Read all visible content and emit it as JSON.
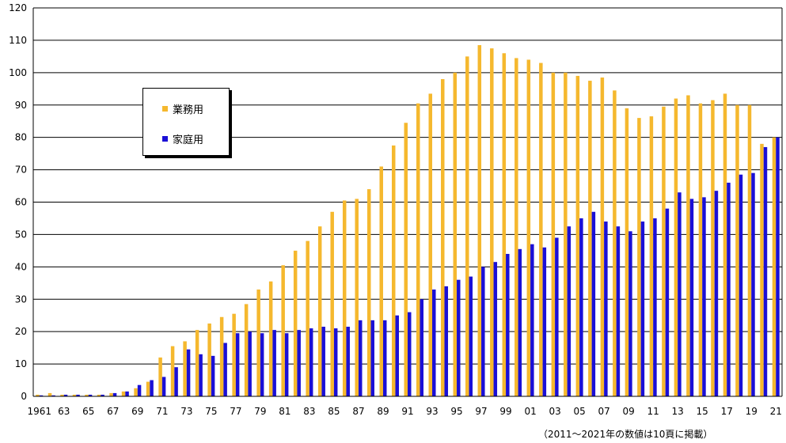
{
  "chart_data": {
    "type": "bar",
    "categories": [
      "1961",
      "62",
      "63",
      "64",
      "65",
      "66",
      "67",
      "68",
      "69",
      "70",
      "71",
      "72",
      "73",
      "74",
      "75",
      "76",
      "77",
      "78",
      "79",
      "80",
      "81",
      "82",
      "83",
      "84",
      "85",
      "86",
      "87",
      "88",
      "89",
      "90",
      "91",
      "92",
      "93",
      "94",
      "95",
      "96",
      "97",
      "98",
      "99",
      "00",
      "01",
      "02",
      "03",
      "04",
      "05",
      "06",
      "07",
      "08",
      "09",
      "10",
      "11",
      "12",
      "13",
      "14",
      "15",
      "16",
      "17",
      "18",
      "19",
      "20",
      "21"
    ],
    "tick_labels": [
      "1961",
      "",
      "63",
      "",
      "65",
      "",
      "67",
      "",
      "69",
      "",
      "71",
      "",
      "73",
      "",
      "75",
      "",
      "77",
      "",
      "79",
      "",
      "81",
      "",
      "83",
      "",
      "85",
      "",
      "87",
      "",
      "89",
      "",
      "91",
      "",
      "93",
      "",
      "95",
      "",
      "97",
      "",
      "99",
      "",
      "01",
      "",
      "03",
      "",
      "05",
      "",
      "07",
      "",
      "09",
      "",
      "11",
      "",
      "13",
      "",
      "15",
      "",
      "17",
      "",
      "19",
      "",
      "21"
    ],
    "series": [
      {
        "name": "業務用",
        "color": "#F5B82E",
        "values": [
          0.5,
          1.0,
          0.5,
          0.5,
          0.5,
          0.5,
          1.0,
          1.5,
          2.5,
          4.5,
          12.0,
          15.5,
          17.0,
          20.5,
          22.5,
          24.5,
          25.5,
          28.5,
          33.0,
          35.5,
          40.5,
          45.0,
          48.0,
          52.5,
          57.0,
          60.5,
          61.0,
          64.0,
          71.0,
          77.5,
          84.5,
          90.5,
          93.5,
          98.0,
          100.0,
          105.0,
          108.5,
          107.5,
          106.0,
          104.5,
          104.0,
          103.0,
          100.0,
          100.0,
          99.0,
          97.5,
          98.5,
          94.5,
          89.0,
          86.0,
          86.5,
          89.5,
          92.0,
          93.0,
          90.5,
          91.5,
          93.5,
          90.0,
          90.0,
          78.0,
          80.0
        ]
      },
      {
        "name": "家庭用",
        "color": "#1A0FD6",
        "values": [
          0.3,
          0.3,
          0.5,
          0.5,
          0.5,
          0.5,
          1.0,
          1.5,
          3.5,
          5.0,
          6.0,
          9.0,
          14.5,
          13.0,
          12.5,
          16.5,
          19.5,
          20.0,
          19.5,
          20.5,
          19.5,
          20.5,
          21.0,
          21.5,
          21.0,
          21.5,
          23.5,
          23.5,
          23.5,
          25.0,
          26.0,
          30.0,
          33.0,
          34.0,
          36.0,
          37.0,
          40.0,
          41.5,
          44.0,
          45.5,
          47.0,
          46.0,
          49.0,
          52.5,
          55.0,
          57.0,
          54.0,
          52.5,
          51.0,
          54.0,
          55.0,
          58.0,
          63.0,
          61.0,
          61.5,
          63.5,
          66.0,
          68.5,
          69.0,
          77.0,
          80.0
        ]
      }
    ],
    "ylim": [
      0,
      120
    ],
    "yticks": [
      0,
      10,
      20,
      30,
      40,
      50,
      60,
      70,
      80,
      90,
      100,
      110,
      120
    ],
    "grid": true,
    "legend_position": "upper-left",
    "note": "（2011～2021年の数値は10頁に掲載）"
  }
}
